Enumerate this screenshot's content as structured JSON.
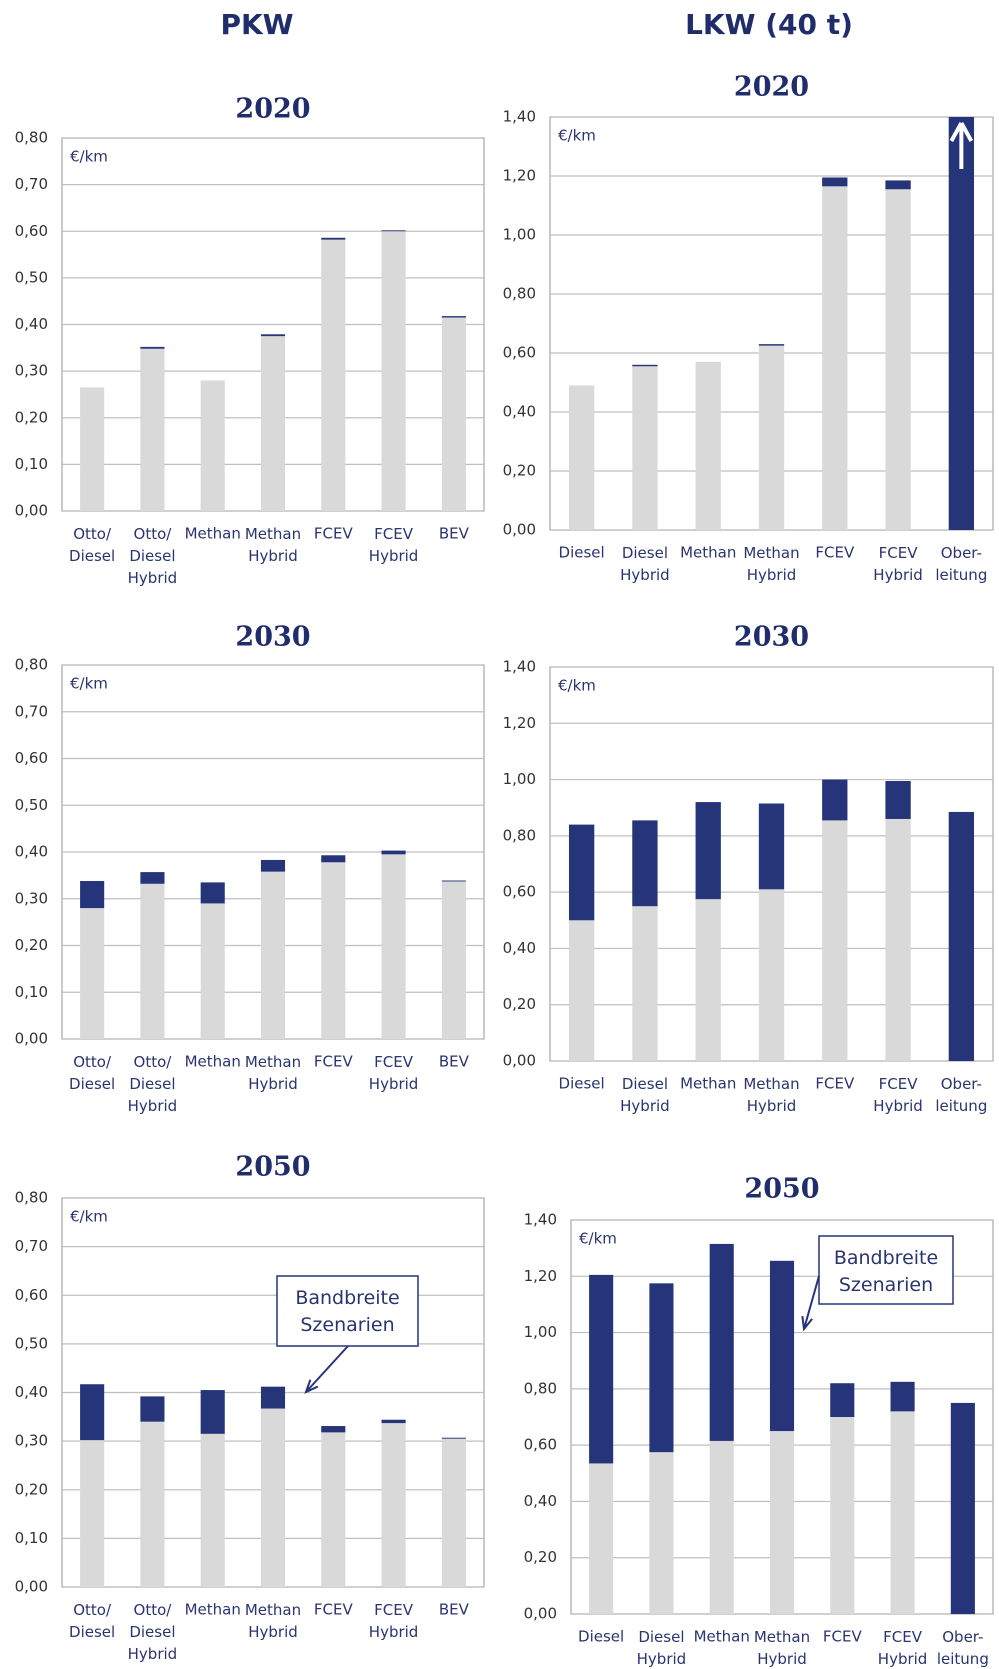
{
  "headers": [
    "PKW",
    "LKW (40 t)"
  ],
  "chart_data": [
    {
      "type": "bar",
      "title": "2020",
      "y_label": "€/km",
      "categories": [
        "Otto/\nDiesel",
        "Otto/\nDiesel\nHybrid",
        "Methan",
        "Methan\nHybrid",
        "FCEV",
        "FCEV\nHybrid",
        "BEV"
      ],
      "series": [
        {
          "color": "#d9d9d9",
          "values": [
            0.265,
            0.348,
            0.28,
            0.375,
            0.582,
            0.6,
            0.415
          ]
        },
        {
          "color": "#26347a",
          "values": [
            0,
            0.004,
            0,
            0.004,
            0.004,
            0.002,
            0.003
          ]
        }
      ],
      "ylim": [
        0,
        0.8
      ],
      "yticks": [
        {
          "value": 0,
          "label": "0,00"
        },
        {
          "value": 0.1,
          "label": "0,10"
        },
        {
          "value": 0.2,
          "label": "0,20"
        },
        {
          "value": 0.3,
          "label": "0,30"
        },
        {
          "value": 0.4,
          "label": "0,40"
        },
        {
          "value": 0.5,
          "label": "0,50"
        },
        {
          "value": 0.6,
          "label": "0,60"
        },
        {
          "value": 0.7,
          "label": "0,70"
        },
        {
          "value": 0.8,
          "label": "0,80"
        }
      ],
      "grid": true,
      "stacked": true
    },
    {
      "type": "bar",
      "title": "2020",
      "y_label": "€/km",
      "categories": [
        "Diesel",
        "Diesel\nHybrid",
        "Methan",
        "Methan\nHybrid",
        "FCEV",
        "FCEV\nHybrid",
        "Ober-\nleitung"
      ],
      "series": [
        {
          "color": "#d9d9d9",
          "values": [
            0.49,
            0.555,
            0.57,
            0.625,
            1.165,
            1.155,
            0
          ]
        },
        {
          "color": "#26347a",
          "values": [
            0,
            0.005,
            0,
            0.005,
            0.03,
            0.03,
            1.4
          ]
        }
      ],
      "ylim": [
        0,
        1.4
      ],
      "yticks": [
        {
          "value": 0,
          "label": "0,00"
        },
        {
          "value": 0.2,
          "label": "0,20"
        },
        {
          "value": 0.4,
          "label": "0,40"
        },
        {
          "value": 0.6,
          "label": "0,60"
        },
        {
          "value": 0.8,
          "label": "0,80"
        },
        {
          "value": 1.0,
          "label": "1,00"
        },
        {
          "value": 1.2,
          "label": "1,20"
        },
        {
          "value": 1.4,
          "label": "1,40"
        }
      ],
      "grid": true,
      "stacked": true
    },
    {
      "type": "bar",
      "title": "2030",
      "y_label": "€/km",
      "categories": [
        "Otto/\nDiesel",
        "Otto/\nDiesel\nHybrid",
        "Methan",
        "Methan\nHybrid",
        "FCEV",
        "FCEV\nHybrid",
        "BEV"
      ],
      "series": [
        {
          "color": "#d9d9d9",
          "values": [
            0.28,
            0.332,
            0.29,
            0.358,
            0.378,
            0.395,
            0.337
          ]
        },
        {
          "color": "#26347a",
          "values": [
            0.058,
            0.025,
            0.045,
            0.025,
            0.015,
            0.008,
            0.002
          ]
        }
      ],
      "ylim": [
        0,
        0.8
      ],
      "yticks": [
        {
          "value": 0,
          "label": "0,00"
        },
        {
          "value": 0.1,
          "label": "0,10"
        },
        {
          "value": 0.2,
          "label": "0,20"
        },
        {
          "value": 0.3,
          "label": "0,30"
        },
        {
          "value": 0.4,
          "label": "0,40"
        },
        {
          "value": 0.5,
          "label": "0,50"
        },
        {
          "value": 0.6,
          "label": "0,60"
        },
        {
          "value": 0.7,
          "label": "0,70"
        },
        {
          "value": 0.8,
          "label": "0,80"
        }
      ],
      "grid": true,
      "stacked": true
    },
    {
      "type": "bar",
      "title": "2030",
      "y_label": "€/km",
      "categories": [
        "Diesel",
        "Diesel\nHybrid",
        "Methan",
        "Methan\nHybrid",
        "FCEV",
        "FCEV\nHybrid",
        "Ober-\nleitung"
      ],
      "series": [
        {
          "color": "#d9d9d9",
          "values": [
            0.5,
            0.55,
            0.575,
            0.61,
            0.855,
            0.86,
            0
          ]
        },
        {
          "color": "#26347a",
          "values": [
            0.34,
            0.305,
            0.345,
            0.305,
            0.145,
            0.135,
            0.885
          ]
        }
      ],
      "ylim": [
        0,
        1.4
      ],
      "yticks": [
        {
          "value": 0,
          "label": "0,00"
        },
        {
          "value": 0.2,
          "label": "0,20"
        },
        {
          "value": 0.4,
          "label": "0,40"
        },
        {
          "value": 0.6,
          "label": "0,60"
        },
        {
          "value": 0.8,
          "label": "0,80"
        },
        {
          "value": 1.0,
          "label": "1,00"
        },
        {
          "value": 1.2,
          "label": "1,20"
        },
        {
          "value": 1.4,
          "label": "1,40"
        }
      ],
      "grid": true,
      "stacked": true
    },
    {
      "type": "bar",
      "title": "2050",
      "y_label": "€/km",
      "annotation": "Bandbreite\nSzenarien",
      "categories": [
        "Otto/\nDiesel",
        "Otto/\nDiesel\nHybrid",
        "Methan",
        "Methan\nHybrid",
        "FCEV",
        "FCEV\nHybrid",
        "BEV"
      ],
      "series": [
        {
          "color": "#d9d9d9",
          "values": [
            0.302,
            0.34,
            0.315,
            0.367,
            0.318,
            0.337,
            0.305
          ]
        },
        {
          "color": "#26347a",
          "values": [
            0.115,
            0.052,
            0.09,
            0.045,
            0.013,
            0.007,
            0.002
          ]
        }
      ],
      "ylim": [
        0,
        0.8
      ],
      "yticks": [
        {
          "value": 0,
          "label": "0,00"
        },
        {
          "value": 0.1,
          "label": "0,10"
        },
        {
          "value": 0.2,
          "label": "0,20"
        },
        {
          "value": 0.3,
          "label": "0,30"
        },
        {
          "value": 0.4,
          "label": "0,40"
        },
        {
          "value": 0.5,
          "label": "0,50"
        },
        {
          "value": 0.6,
          "label": "0,60"
        },
        {
          "value": 0.7,
          "label": "0,70"
        },
        {
          "value": 0.8,
          "label": "0,80"
        }
      ],
      "grid": true,
      "stacked": true
    },
    {
      "type": "bar",
      "title": "2050",
      "y_label": "€/km",
      "annotation": "Bandbreite\nSzenarien",
      "categories": [
        "Diesel",
        "Diesel\nHybrid",
        "Methan",
        "Methan\nHybrid",
        "FCEV",
        "FCEV\nHybrid",
        "Ober-\nleitung"
      ],
      "series": [
        {
          "color": "#d9d9d9",
          "values": [
            0.535,
            0.575,
            0.615,
            0.65,
            0.7,
            0.72,
            0
          ]
        },
        {
          "color": "#26347a",
          "values": [
            0.67,
            0.6,
            0.7,
            0.605,
            0.12,
            0.105,
            0.75
          ]
        }
      ],
      "ylim": [
        0,
        1.4
      ],
      "yticks": [
        {
          "value": 0,
          "label": "0,00"
        },
        {
          "value": 0.2,
          "label": "0,20"
        },
        {
          "value": 0.4,
          "label": "0,40"
        },
        {
          "value": 0.6,
          "label": "0,60"
        },
        {
          "value": 0.8,
          "label": "0,80"
        },
        {
          "value": 1.0,
          "label": "1,00"
        },
        {
          "value": 1.2,
          "label": "1,20"
        },
        {
          "value": 1.4,
          "label": "1,40"
        }
      ],
      "grid": true,
      "stacked": true
    }
  ]
}
